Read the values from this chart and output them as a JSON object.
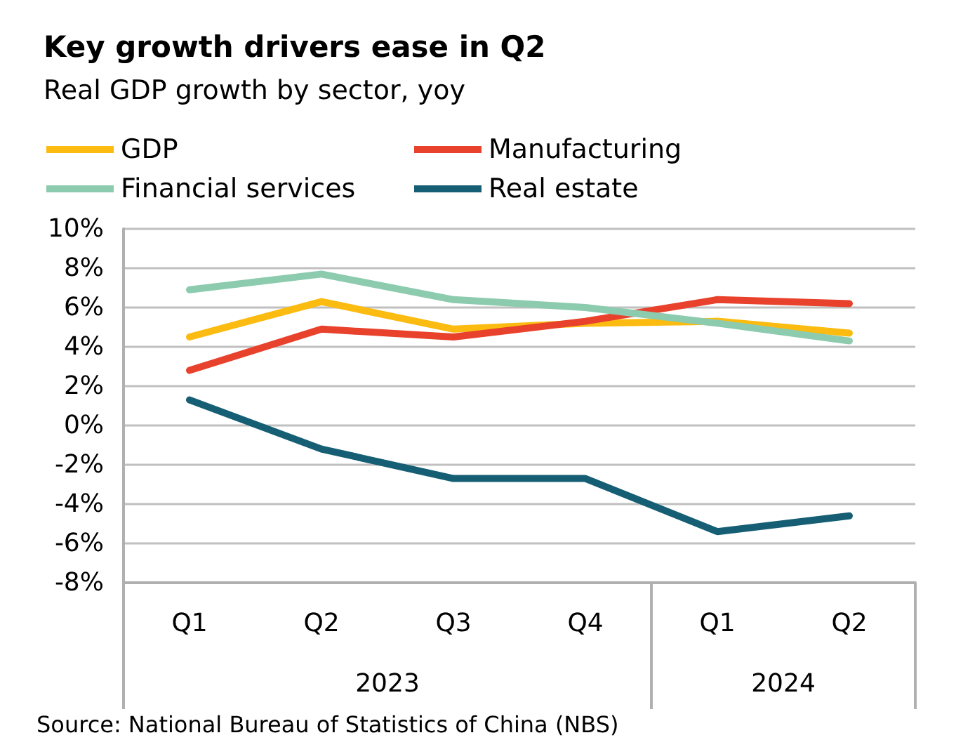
{
  "chart_data": {
    "type": "line",
    "title": "Key growth drivers ease in Q2",
    "subtitle": "Real GDP growth by sector, yoy",
    "categories": [
      "Q1",
      "Q2",
      "Q3",
      "Q4",
      "Q1",
      "Q2"
    ],
    "series": [
      {
        "name": "GDP",
        "color": "#fbbb10",
        "values": [
          4.5,
          6.3,
          4.9,
          5.2,
          5.3,
          4.7
        ]
      },
      {
        "name": "Manufacturing",
        "color": "#e8412c",
        "values": [
          2.8,
          4.9,
          4.5,
          5.3,
          6.4,
          6.2
        ]
      },
      {
        "name": "Financial services",
        "color": "#8ccbae",
        "values": [
          6.9,
          7.7,
          6.4,
          6.0,
          5.2,
          4.3
        ]
      },
      {
        "name": "Real estate",
        "color": "#155e73",
        "values": [
          1.3,
          -1.2,
          -2.7,
          -2.7,
          -5.4,
          -4.6
        ]
      }
    ],
    "ylim": [
      -8,
      10
    ],
    "yticks": [
      {
        "value": -8,
        "label": "-8%"
      },
      {
        "value": -6,
        "label": "-6%"
      },
      {
        "value": -4,
        "label": "-4%"
      },
      {
        "value": -2,
        "label": "-2%"
      },
      {
        "value": 0,
        "label": "0%"
      },
      {
        "value": 2,
        "label": "2%"
      },
      {
        "value": 4,
        "label": "4%"
      },
      {
        "value": 6,
        "label": "6%"
      },
      {
        "value": 8,
        "label": "8%"
      },
      {
        "value": 10,
        "label": "10%"
      }
    ],
    "grid": "y",
    "legend": "top",
    "marker": "none",
    "line_style": "solid",
    "annotations": [
      "2023",
      "2024",
      "Source: National Bureau of Statistics of China (NBS)"
    ]
  }
}
